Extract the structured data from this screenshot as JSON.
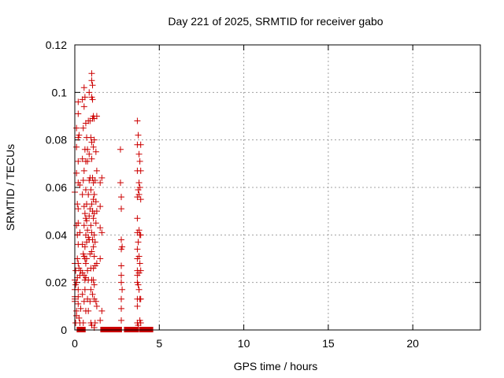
{
  "chart_data": {
    "type": "scatter",
    "title": "Day 221 of 2025, SRMTID for receiver gabo",
    "xlabel": "GPS time / hours",
    "ylabel": "SRMTID / TECUs",
    "xlim": [
      0,
      24
    ],
    "ylim": [
      0,
      0.12
    ],
    "xticks": [
      0,
      5,
      10,
      15,
      20
    ],
    "xtick_labels": [
      "0",
      "5",
      "10",
      "15",
      "20"
    ],
    "yticks": [
      0,
      0.02,
      0.04,
      0.06,
      0.08,
      0.1,
      0.12
    ],
    "ytick_labels": [
      "0",
      "0.02",
      "0.04",
      "0.06",
      "0.08",
      "0.1",
      "0.12"
    ],
    "grid": true,
    "marker": "+",
    "series": [
      {
        "name": "SRMTID",
        "color": "#cc0000",
        "points": [
          [
            0.0,
            0.058
          ],
          [
            0.0,
            0.028
          ],
          [
            0.0,
            0.021
          ],
          [
            0.0,
            0.017
          ],
          [
            0.0,
            0.014
          ],
          [
            0.0,
            0.012
          ],
          [
            0.0,
            0.013
          ],
          [
            0.05,
            0.025
          ],
          [
            0.05,
            0.019
          ],
          [
            0.05,
            0.003
          ],
          [
            0.1,
            0.085
          ],
          [
            0.1,
            0.077
          ],
          [
            0.1,
            0.066
          ],
          [
            0.1,
            0.044
          ],
          [
            0.1,
            0.02
          ],
          [
            0.1,
            0.008
          ],
          [
            0.1,
            0.006
          ],
          [
            0.15,
            0.053
          ],
          [
            0.15,
            0.04
          ],
          [
            0.15,
            0.03
          ],
          [
            0.15,
            0.022
          ],
          [
            0.2,
            0.096
          ],
          [
            0.2,
            0.091
          ],
          [
            0.2,
            0.081
          ],
          [
            0.2,
            0.071
          ],
          [
            0.2,
            0.062
          ],
          [
            0.2,
            0.051
          ],
          [
            0.2,
            0.045
          ],
          [
            0.2,
            0.036
          ],
          [
            0.2,
            0.028
          ],
          [
            0.2,
            0.017
          ],
          [
            0.2,
            0.014
          ],
          [
            0.2,
            0.011
          ],
          [
            0.25,
            0.082
          ],
          [
            0.25,
            0.026
          ],
          [
            0.25,
            0.005
          ],
          [
            0.3,
            0.061
          ],
          [
            0.3,
            0.041
          ],
          [
            0.3,
            0.023
          ],
          [
            0.3,
            0.003
          ],
          [
            0.35,
            0.025
          ],
          [
            0.35,
            0.009
          ],
          [
            0.45,
            0.097
          ],
          [
            0.45,
            0.072
          ],
          [
            0.45,
            0.057
          ],
          [
            0.45,
            0.036
          ],
          [
            0.45,
            0.024
          ],
          [
            0.45,
            0.015
          ],
          [
            0.5,
            0.085
          ],
          [
            0.5,
            0.063
          ],
          [
            0.5,
            0.032
          ],
          [
            0.5,
            0.003
          ],
          [
            0.55,
            0.102
          ],
          [
            0.55,
            0.094
          ],
          [
            0.55,
            0.067
          ],
          [
            0.55,
            0.052
          ],
          [
            0.55,
            0.044
          ],
          [
            0.55,
            0.031
          ],
          [
            0.55,
            0.023
          ],
          [
            0.55,
            0.012
          ],
          [
            0.6,
            0.098
          ],
          [
            0.6,
            0.076
          ],
          [
            0.6,
            0.049
          ],
          [
            0.6,
            0.035
          ],
          [
            0.6,
            0.03
          ],
          [
            0.6,
            0.021
          ],
          [
            0.6,
            0.017
          ],
          [
            0.65,
            0.087
          ],
          [
            0.65,
            0.071
          ],
          [
            0.65,
            0.059
          ],
          [
            0.65,
            0.047
          ],
          [
            0.65,
            0.04
          ],
          [
            0.65,
            0.028
          ],
          [
            0.65,
            0.022
          ],
          [
            0.65,
            0.008
          ],
          [
            0.7,
            0.081
          ],
          [
            0.7,
            0.053
          ],
          [
            0.7,
            0.046
          ],
          [
            0.7,
            0.037
          ],
          [
            0.7,
            0.03
          ],
          [
            0.75,
            0.076
          ],
          [
            0.75,
            0.071
          ],
          [
            0.75,
            0.042
          ],
          [
            0.75,
            0.025
          ],
          [
            0.75,
            0.013
          ],
          [
            0.8,
            0.088
          ],
          [
            0.8,
            0.057
          ],
          [
            0.8,
            0.039
          ],
          [
            0.8,
            0.021
          ],
          [
            0.8,
            0.008
          ],
          [
            0.85,
            0.1
          ],
          [
            0.85,
            0.074
          ],
          [
            0.85,
            0.063
          ],
          [
            0.85,
            0.048
          ],
          [
            0.85,
            0.038
          ],
          [
            0.9,
            0.088
          ],
          [
            0.9,
            0.064
          ],
          [
            0.9,
            0.051
          ],
          [
            0.9,
            0.032
          ],
          [
            0.9,
            0.012
          ],
          [
            0.95,
            0.081
          ],
          [
            0.95,
            0.059
          ],
          [
            0.95,
            0.044
          ],
          [
            0.95,
            0.026
          ],
          [
            0.95,
            0.017
          ],
          [
            0.95,
            0.003
          ],
          [
            1.0,
            0.108
          ],
          [
            1.0,
            0.105
          ],
          [
            1.0,
            0.098
          ],
          [
            1.0,
            0.079
          ],
          [
            1.0,
            0.072
          ],
          [
            1.0,
            0.053
          ],
          [
            1.0,
            0.041
          ],
          [
            1.0,
            0.033
          ],
          [
            1.0,
            0.021
          ],
          [
            1.0,
            0.002
          ],
          [
            1.05,
            0.103
          ],
          [
            1.05,
            0.097
          ],
          [
            1.05,
            0.089
          ],
          [
            1.05,
            0.064
          ],
          [
            1.05,
            0.05
          ],
          [
            1.05,
            0.038
          ],
          [
            1.05,
            0.015
          ],
          [
            1.1,
            0.09
          ],
          [
            1.1,
            0.077
          ],
          [
            1.1,
            0.062
          ],
          [
            1.1,
            0.055
          ],
          [
            1.1,
            0.047
          ],
          [
            1.1,
            0.035
          ],
          [
            1.1,
            0.026
          ],
          [
            1.1,
            0.021
          ],
          [
            1.15,
            0.089
          ],
          [
            1.15,
            0.08
          ],
          [
            1.15,
            0.057
          ],
          [
            1.15,
            0.049
          ],
          [
            1.15,
            0.04
          ],
          [
            1.15,
            0.031
          ],
          [
            1.15,
            0.019
          ],
          [
            1.15,
            0.013
          ],
          [
            1.15,
            0.001
          ],
          [
            1.2,
            0.063
          ],
          [
            1.2,
            0.037
          ],
          [
            1.2,
            0.027
          ],
          [
            1.2,
            0.003
          ],
          [
            1.25,
            0.075
          ],
          [
            1.25,
            0.054
          ],
          [
            1.25,
            0.045
          ],
          [
            1.25,
            0.012
          ],
          [
            1.3,
            0.09
          ],
          [
            1.3,
            0.067
          ],
          [
            1.3,
            0.05
          ],
          [
            1.3,
            0.028
          ],
          [
            1.3,
            0.01
          ],
          [
            1.5,
            0.062
          ],
          [
            1.5,
            0.052
          ],
          [
            1.5,
            0.043
          ],
          [
            1.5,
            0.03
          ],
          [
            1.5,
            0.004
          ],
          [
            1.6,
            0.064
          ],
          [
            1.6,
            0.041
          ],
          [
            1.6,
            0.008
          ],
          [
            2.7,
            0.076
          ],
          [
            2.7,
            0.062
          ],
          [
            2.75,
            0.056
          ],
          [
            2.75,
            0.051
          ],
          [
            2.75,
            0.038
          ],
          [
            2.75,
            0.034
          ],
          [
            2.75,
            0.027
          ],
          [
            2.75,
            0.023
          ],
          [
            2.75,
            0.02
          ],
          [
            2.75,
            0.013
          ],
          [
            2.75,
            0.009
          ],
          [
            2.75,
            0.004
          ],
          [
            2.8,
            0.035
          ],
          [
            2.8,
            0.017
          ],
          [
            3.7,
            0.088
          ],
          [
            3.7,
            0.078
          ],
          [
            3.7,
            0.067
          ],
          [
            3.7,
            0.056
          ],
          [
            3.7,
            0.047
          ],
          [
            3.7,
            0.041
          ],
          [
            3.7,
            0.034
          ],
          [
            3.7,
            0.03
          ],
          [
            3.7,
            0.025
          ],
          [
            3.7,
            0.023
          ],
          [
            3.7,
            0.02
          ],
          [
            3.7,
            0.013
          ],
          [
            3.7,
            0.01
          ],
          [
            3.7,
            0.003
          ],
          [
            3.75,
            0.082
          ],
          [
            3.75,
            0.059
          ],
          [
            3.75,
            0.037
          ],
          [
            3.75,
            0.019
          ],
          [
            3.75,
            0.002
          ],
          [
            3.8,
            0.074
          ],
          [
            3.8,
            0.062
          ],
          [
            3.8,
            0.057
          ],
          [
            3.8,
            0.042
          ],
          [
            3.8,
            0.031
          ],
          [
            3.8,
            0.024
          ],
          [
            3.8,
            0.017
          ],
          [
            3.85,
            0.071
          ],
          [
            3.85,
            0.06
          ],
          [
            3.85,
            0.04
          ],
          [
            3.85,
            0.028
          ],
          [
            3.85,
            0.013
          ],
          [
            3.85,
            0.004
          ],
          [
            3.9,
            0.078
          ],
          [
            3.9,
            0.067
          ],
          [
            3.9,
            0.055
          ],
          [
            3.9,
            0.04
          ],
          [
            3.9,
            0.025
          ],
          [
            3.9,
            0.013
          ],
          [
            3.9,
            0.003
          ]
        ],
        "zero_bands": [
          [
            0.25,
            0.5
          ],
          [
            1.65,
            2.65
          ],
          [
            3.05,
            3.65
          ],
          [
            3.95,
            4.5
          ]
        ]
      }
    ]
  }
}
